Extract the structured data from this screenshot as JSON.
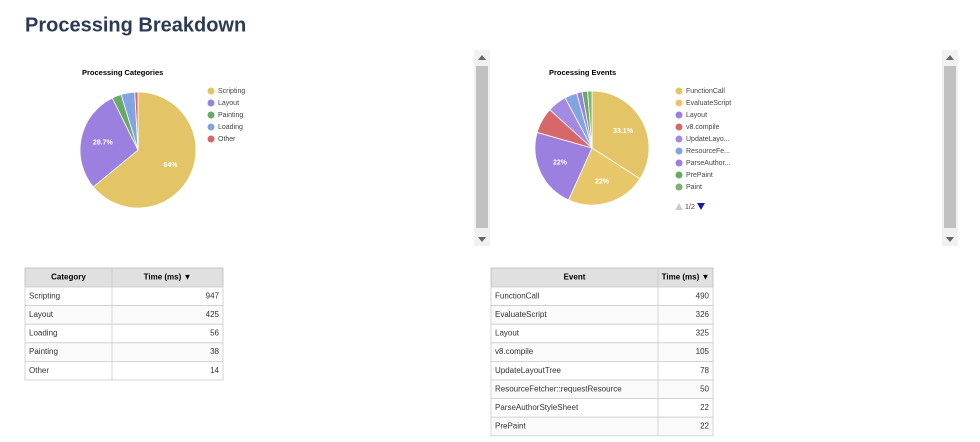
{
  "header": {
    "title": "Processing Breakdown"
  },
  "chart_data": [
    {
      "type": "pie",
      "title": "Processing Categories",
      "categories": [
        "Scripting",
        "Layout",
        "Painting",
        "Loading",
        "Other"
      ],
      "values": [
        64,
        28.7,
        2.6,
        3.8,
        0.9
      ],
      "value_labels": [
        "64%",
        "28.7%",
        null,
        null,
        null
      ],
      "colors": [
        "#e3c567",
        "#9b80e0",
        "#6aa86a",
        "#83a4e2",
        "#d8676a"
      ],
      "legend": "right"
    },
    {
      "type": "pie",
      "title": "Processing Events",
      "categories": [
        "FunctionCall",
        "EvaluateScript",
        "Layout",
        "v8.compile",
        "UpdateLayo...",
        "ResourceFe...",
        "ParseAuthor...",
        "PrePaint",
        "Paint"
      ],
      "values": [
        33.1,
        22,
        22,
        7.1,
        5.3,
        3.4,
        1.5,
        1.5,
        1.2
      ],
      "value_labels": [
        "33.1%",
        "22%",
        "22%",
        null,
        null,
        null,
        null,
        null,
        null
      ],
      "colors": [
        "#e3c567",
        "#e8c76a",
        "#9b80e0",
        "#d8676a",
        "#a58ae3",
        "#83a4e2",
        "#9b80e0",
        "#6aa86a",
        "#7cb36f"
      ],
      "legend": "right",
      "legend_page": "1/2"
    }
  ],
  "tables": [
    {
      "columns": [
        "Category",
        "Time (ms) ▼"
      ],
      "rows": [
        [
          "Scripting",
          947
        ],
        [
          "Layout",
          425
        ],
        [
          "Loading",
          56
        ],
        [
          "Painting",
          38
        ],
        [
          "Other",
          14
        ]
      ]
    },
    {
      "columns": [
        "Event",
        "Time (ms) ▼"
      ],
      "rows": [
        [
          "FunctionCall",
          490
        ],
        [
          "EvaluateScript",
          326
        ],
        [
          "Layout",
          325
        ],
        [
          "v8.compile",
          105
        ],
        [
          "UpdateLayoutTree",
          78
        ],
        [
          "ResourceFetcher::requestResource",
          50
        ],
        [
          "ParseAuthorStyleSheet",
          22
        ],
        [
          "PrePaint",
          22
        ]
      ]
    }
  ]
}
